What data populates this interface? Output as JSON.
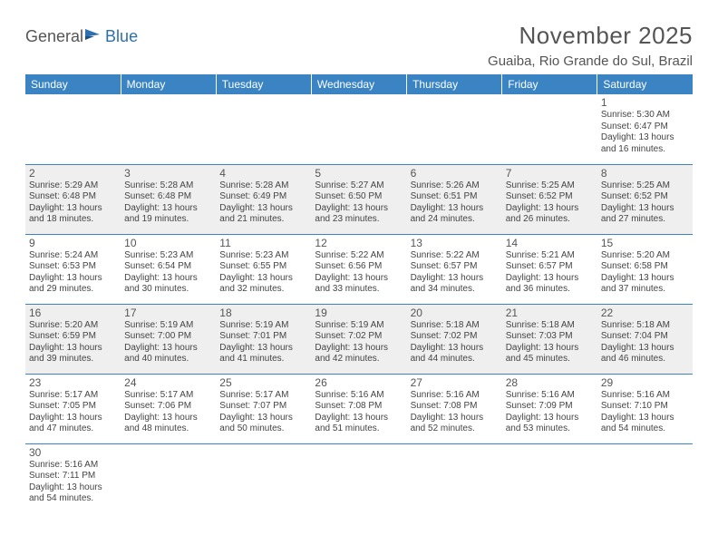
{
  "brand": {
    "part1": "General",
    "part2": "Blue"
  },
  "title": "November 2025",
  "location": "Guaiba, Rio Grande do Sul, Brazil",
  "colors": {
    "header_bg": "#3b84c4",
    "header_text": "#ffffff",
    "shade_bg": "#efefef",
    "rule": "#3b84c4",
    "text": "#444444",
    "title_text": "#555555",
    "brand_accent": "#2f6fb0"
  },
  "layout": {
    "columns": 7,
    "first_weekday_index": 6,
    "shaded_rows": [
      1,
      3
    ]
  },
  "weekdays": [
    "Sunday",
    "Monday",
    "Tuesday",
    "Wednesday",
    "Thursday",
    "Friday",
    "Saturday"
  ],
  "days": [
    {
      "n": 1,
      "sunrise": "5:30 AM",
      "sunset": "6:47 PM",
      "dl1": "13 hours",
      "dl2": "and 16 minutes."
    },
    {
      "n": 2,
      "sunrise": "5:29 AM",
      "sunset": "6:48 PM",
      "dl1": "13 hours",
      "dl2": "and 18 minutes."
    },
    {
      "n": 3,
      "sunrise": "5:28 AM",
      "sunset": "6:48 PM",
      "dl1": "13 hours",
      "dl2": "and 19 minutes."
    },
    {
      "n": 4,
      "sunrise": "5:28 AM",
      "sunset": "6:49 PM",
      "dl1": "13 hours",
      "dl2": "and 21 minutes."
    },
    {
      "n": 5,
      "sunrise": "5:27 AM",
      "sunset": "6:50 PM",
      "dl1": "13 hours",
      "dl2": "and 23 minutes."
    },
    {
      "n": 6,
      "sunrise": "5:26 AM",
      "sunset": "6:51 PM",
      "dl1": "13 hours",
      "dl2": "and 24 minutes."
    },
    {
      "n": 7,
      "sunrise": "5:25 AM",
      "sunset": "6:52 PM",
      "dl1": "13 hours",
      "dl2": "and 26 minutes."
    },
    {
      "n": 8,
      "sunrise": "5:25 AM",
      "sunset": "6:52 PM",
      "dl1": "13 hours",
      "dl2": "and 27 minutes."
    },
    {
      "n": 9,
      "sunrise": "5:24 AM",
      "sunset": "6:53 PM",
      "dl1": "13 hours",
      "dl2": "and 29 minutes."
    },
    {
      "n": 10,
      "sunrise": "5:23 AM",
      "sunset": "6:54 PM",
      "dl1": "13 hours",
      "dl2": "and 30 minutes."
    },
    {
      "n": 11,
      "sunrise": "5:23 AM",
      "sunset": "6:55 PM",
      "dl1": "13 hours",
      "dl2": "and 32 minutes."
    },
    {
      "n": 12,
      "sunrise": "5:22 AM",
      "sunset": "6:56 PM",
      "dl1": "13 hours",
      "dl2": "and 33 minutes."
    },
    {
      "n": 13,
      "sunrise": "5:22 AM",
      "sunset": "6:57 PM",
      "dl1": "13 hours",
      "dl2": "and 34 minutes."
    },
    {
      "n": 14,
      "sunrise": "5:21 AM",
      "sunset": "6:57 PM",
      "dl1": "13 hours",
      "dl2": "and 36 minutes."
    },
    {
      "n": 15,
      "sunrise": "5:20 AM",
      "sunset": "6:58 PM",
      "dl1": "13 hours",
      "dl2": "and 37 minutes."
    },
    {
      "n": 16,
      "sunrise": "5:20 AM",
      "sunset": "6:59 PM",
      "dl1": "13 hours",
      "dl2": "and 39 minutes."
    },
    {
      "n": 17,
      "sunrise": "5:19 AM",
      "sunset": "7:00 PM",
      "dl1": "13 hours",
      "dl2": "and 40 minutes."
    },
    {
      "n": 18,
      "sunrise": "5:19 AM",
      "sunset": "7:01 PM",
      "dl1": "13 hours",
      "dl2": "and 41 minutes."
    },
    {
      "n": 19,
      "sunrise": "5:19 AM",
      "sunset": "7:02 PM",
      "dl1": "13 hours",
      "dl2": "and 42 minutes."
    },
    {
      "n": 20,
      "sunrise": "5:18 AM",
      "sunset": "7:02 PM",
      "dl1": "13 hours",
      "dl2": "and 44 minutes."
    },
    {
      "n": 21,
      "sunrise": "5:18 AM",
      "sunset": "7:03 PM",
      "dl1": "13 hours",
      "dl2": "and 45 minutes."
    },
    {
      "n": 22,
      "sunrise": "5:18 AM",
      "sunset": "7:04 PM",
      "dl1": "13 hours",
      "dl2": "and 46 minutes."
    },
    {
      "n": 23,
      "sunrise": "5:17 AM",
      "sunset": "7:05 PM",
      "dl1": "13 hours",
      "dl2": "and 47 minutes."
    },
    {
      "n": 24,
      "sunrise": "5:17 AM",
      "sunset": "7:06 PM",
      "dl1": "13 hours",
      "dl2": "and 48 minutes."
    },
    {
      "n": 25,
      "sunrise": "5:17 AM",
      "sunset": "7:07 PM",
      "dl1": "13 hours",
      "dl2": "and 50 minutes."
    },
    {
      "n": 26,
      "sunrise": "5:16 AM",
      "sunset": "7:08 PM",
      "dl1": "13 hours",
      "dl2": "and 51 minutes."
    },
    {
      "n": 27,
      "sunrise": "5:16 AM",
      "sunset": "7:08 PM",
      "dl1": "13 hours",
      "dl2": "and 52 minutes."
    },
    {
      "n": 28,
      "sunrise": "5:16 AM",
      "sunset": "7:09 PM",
      "dl1": "13 hours",
      "dl2": "and 53 minutes."
    },
    {
      "n": 29,
      "sunrise": "5:16 AM",
      "sunset": "7:10 PM",
      "dl1": "13 hours",
      "dl2": "and 54 minutes."
    },
    {
      "n": 30,
      "sunrise": "5:16 AM",
      "sunset": "7:11 PM",
      "dl1": "13 hours",
      "dl2": "and 54 minutes."
    }
  ],
  "labels": {
    "sunrise": "Sunrise:",
    "sunset": "Sunset:",
    "daylight": "Daylight:"
  }
}
